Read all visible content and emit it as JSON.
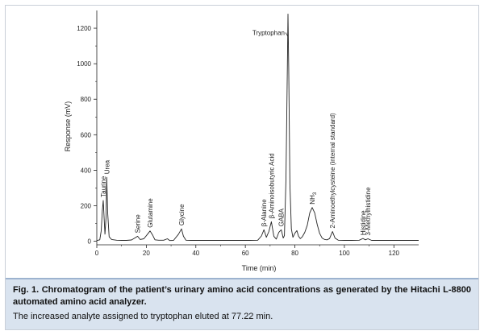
{
  "chart_data": {
    "type": "line",
    "title": "",
    "xlabel": "Time (min)",
    "ylabel": "Response (mV)",
    "xlim": [
      0,
      130
    ],
    "ylim": [
      -20,
      1300
    ],
    "xticks": [
      0,
      20,
      40,
      60,
      80,
      100,
      120
    ],
    "yticks": [
      0,
      200,
      400,
      600,
      800,
      1000,
      1200
    ],
    "grid": false,
    "legend": "none",
    "line_color": "#222222",
    "series": [
      {
        "x": [
          0,
          1.2,
          1.8,
          2.2,
          2.6,
          3.0,
          3.3,
          3.7,
          4.0,
          4.4,
          5.0,
          6,
          8,
          10,
          12,
          14,
          15.5,
          16.5,
          17.5,
          19,
          20.5,
          21.5,
          22.5,
          23.5,
          25,
          27,
          28.5,
          29.5,
          31,
          33,
          34.2,
          35,
          36,
          38,
          42,
          46,
          50,
          54,
          58,
          62,
          65,
          66.5,
          67.5,
          68.5,
          69.5,
          70.5,
          71.5,
          72.5,
          73.5,
          74.5,
          75.3,
          75.8,
          76.4,
          77.0,
          77.22,
          77.5,
          78.0,
          78.6,
          79.2,
          80,
          80.8,
          81.5,
          82.2,
          83.0,
          84,
          85,
          86,
          87,
          88,
          89,
          90,
          91,
          92,
          93,
          94,
          95.2,
          96.2,
          97.5,
          100,
          103,
          106,
          107.5,
          108.5,
          109.5,
          111,
          115,
          120,
          125,
          130
        ],
        "y": [
          4,
          8,
          60,
          170,
          230,
          120,
          40,
          130,
          360,
          160,
          25,
          10,
          6,
          5,
          5,
          7,
          20,
          28,
          10,
          14,
          40,
          58,
          36,
          8,
          6,
          6,
          14,
          4,
          5,
          40,
          70,
          28,
          6,
          5,
          5,
          5,
          5,
          5,
          5,
          5,
          6,
          30,
          65,
          22,
          55,
          110,
          28,
          12,
          50,
          65,
          18,
          32,
          350,
          1000,
          1280,
          980,
          320,
          70,
          22,
          45,
          60,
          28,
          15,
          25,
          50,
          90,
          160,
          190,
          160,
          95,
          45,
          18,
          10,
          8,
          15,
          55,
          18,
          6,
          5,
          5,
          6,
          16,
          8,
          14,
          5,
          5,
          5,
          5,
          5
        ]
      }
    ],
    "annotations": [
      {
        "text": "Taurine",
        "x": 2.6,
        "y": 230
      },
      {
        "text": "Urea",
        "x": 4.0,
        "y": 360
      },
      {
        "text": "Serine",
        "x": 16.5,
        "y": 28
      },
      {
        "text": "Glutamine",
        "x": 21.5,
        "y": 58
      },
      {
        "text": "Glycine",
        "x": 34.2,
        "y": 70
      },
      {
        "text": "β-Alanine",
        "x": 67.5,
        "y": 65
      },
      {
        "text": "β-Aminoisobutyric Acid",
        "x": 70.5,
        "y": 110
      },
      {
        "text": "GABA",
        "x": 74.5,
        "y": 65
      },
      {
        "text": "Tryptophan",
        "x": 77.22,
        "y": 1280
      },
      {
        "text": "NH3",
        "x": 87,
        "y": 190
      },
      {
        "text": "2-Aminoethylcysteine (internal standard)",
        "x": 95.2,
        "y": 55
      },
      {
        "text": "Histidine",
        "x": 107.5,
        "y": 16
      },
      {
        "text": "3-Methylhistidine",
        "x": 109.5,
        "y": 14
      }
    ]
  },
  "caption": {
    "main": "Fig. 1.  Chromatogram of the patient’s urinary amino acid concentrations as generated by the Hitachi L-8800 automated amino acid analyzer.",
    "note": "The increased analyte assigned to tryptophan eluted at 77.22 min."
  }
}
